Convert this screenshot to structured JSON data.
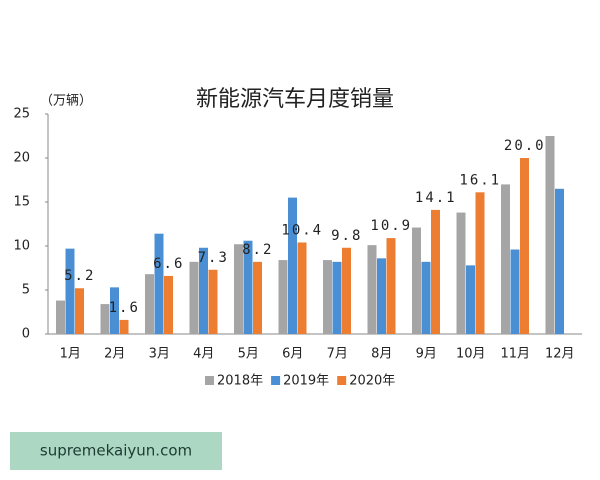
{
  "chart_data": {
    "type": "bar",
    "title": "新能源汽车月度销量",
    "y_label": "（万辆）",
    "categories": [
      "1月",
      "2月",
      "3月",
      "4月",
      "5月",
      "6月",
      "7月",
      "8月",
      "9月",
      "10月",
      "11月",
      "12月"
    ],
    "series": [
      {
        "name": "2018年",
        "color": "#a5a5a5",
        "values": [
          3.8,
          3.4,
          6.8,
          8.2,
          10.2,
          8.4,
          8.4,
          10.1,
          12.1,
          13.8,
          17.0,
          22.5
        ]
      },
      {
        "name": "2019年",
        "color": "#4a8fd4",
        "values": [
          9.7,
          5.3,
          11.4,
          9.8,
          10.6,
          15.5,
          8.2,
          8.6,
          8.2,
          7.8,
          9.6,
          16.5
        ]
      },
      {
        "name": "2020年",
        "color": "#ed7d31",
        "values": [
          5.2,
          1.6,
          6.6,
          7.3,
          8.2,
          10.4,
          9.8,
          10.9,
          14.1,
          16.1,
          20.0,
          null
        ],
        "value_labels": [
          "5.2",
          "1.6",
          "6.6",
          "7.3",
          "8.2",
          "10.4",
          "9.8",
          "10.9",
          "14.1",
          "16.1",
          "20.0",
          null
        ]
      }
    ],
    "ylim": [
      0,
      25
    ],
    "yticks": [
      0,
      5,
      10,
      15,
      20,
      25
    ],
    "grid": false,
    "legend": "bottom"
  },
  "watermark": "supremekaiyun.com"
}
